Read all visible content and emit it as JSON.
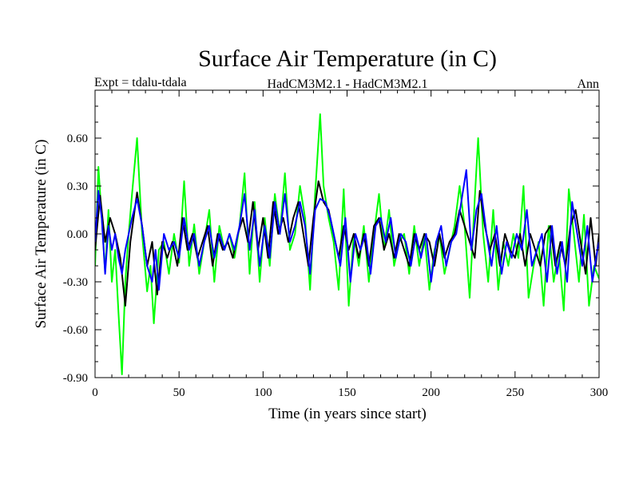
{
  "chart_data": {
    "type": "line",
    "title": "Surface Air Temperature (in C)",
    "subtitle_left": "Expt = tdalu-tdala",
    "subtitle_center": "HadCM3M2.1 - HadCM3M2.1",
    "subtitle_right": "Ann",
    "xlabel": "Time (in years since start)",
    "ylabel": "Surface Air Temperature (in C)",
    "xlim": [
      0,
      300
    ],
    "ylim": [
      -0.9,
      0.9
    ],
    "xticks": [
      0,
      50,
      100,
      150,
      200,
      250,
      300
    ],
    "xtick_labels": [
      "0",
      "50",
      "100",
      "150",
      "200",
      "250",
      "300"
    ],
    "yticks": [
      -0.9,
      -0.6,
      -0.3,
      0.0,
      0.3,
      0.6
    ],
    "ytick_labels": [
      "-0.90",
      "-0.60",
      "-0.30",
      "0.00",
      "0.30",
      "0.60"
    ],
    "series": [
      {
        "name": "green",
        "color": "#00ff00",
        "x": [
          0,
          2,
          4,
          6,
          8,
          10,
          12,
          14,
          16,
          18,
          20,
          22,
          25,
          28,
          31,
          33,
          35,
          38,
          41,
          44,
          47,
          50,
          53,
          56,
          59,
          62,
          65,
          68,
          71,
          74,
          77,
          80,
          83,
          86,
          89,
          92,
          95,
          98,
          101,
          104,
          107,
          110,
          113,
          116,
          119,
          122,
          125,
          128,
          131,
          134,
          136,
          139,
          142,
          145,
          148,
          151,
          154,
          157,
          160,
          163,
          166,
          169,
          172,
          175,
          178,
          181,
          184,
          187,
          190,
          193,
          196,
          199,
          202,
          205,
          208,
          211,
          214,
          217,
          220,
          223,
          226,
          228,
          231,
          234,
          237,
          240,
          243,
          246,
          249,
          252,
          255,
          258,
          261,
          264,
          267,
          270,
          273,
          276,
          279,
          282,
          285,
          288,
          291,
          294,
          297,
          300
        ],
        "values": [
          -0.2,
          0.42,
          0.1,
          -0.24,
          0.15,
          -0.3,
          -0.1,
          -0.5,
          -0.88,
          -0.3,
          0.0,
          0.25,
          0.6,
          0.0,
          -0.36,
          -0.2,
          -0.56,
          -0.1,
          -0.05,
          -0.25,
          0.0,
          -0.18,
          0.33,
          -0.2,
          0.06,
          -0.25,
          -0.05,
          0.15,
          -0.3,
          0.05,
          -0.1,
          0.0,
          -0.15,
          0.05,
          0.38,
          -0.25,
          0.2,
          -0.3,
          0.1,
          -0.2,
          0.25,
          0.0,
          0.38,
          -0.1,
          0.0,
          0.3,
          0.1,
          -0.35,
          0.25,
          0.75,
          0.3,
          0.1,
          -0.05,
          -0.35,
          0.28,
          -0.45,
          0.0,
          -0.2,
          0.05,
          -0.3,
          0.0,
          0.25,
          -0.1,
          0.15,
          -0.2,
          -0.05,
          0.0,
          -0.25,
          0.05,
          -0.2,
          0.0,
          -0.35,
          -0.1,
          0.0,
          -0.25,
          -0.1,
          0.05,
          0.3,
          0.05,
          -0.4,
          0.22,
          0.6,
          0.0,
          -0.3,
          0.15,
          -0.35,
          -0.05,
          -0.2,
          0.0,
          -0.15,
          0.3,
          -0.4,
          -0.2,
          -0.05,
          -0.45,
          0.05,
          -0.3,
          -0.1,
          -0.48,
          0.28,
          0.0,
          -0.3,
          0.12,
          -0.45,
          -0.2,
          -0.28
        ]
      },
      {
        "name": "black",
        "color": "#000000",
        "x": [
          0,
          3,
          6,
          9,
          12,
          15,
          18,
          21,
          25,
          28,
          31,
          34,
          37,
          40,
          43,
          46,
          49,
          52,
          55,
          58,
          61,
          64,
          67,
          70,
          73,
          76,
          79,
          82,
          85,
          88,
          91,
          94,
          97,
          100,
          103,
          106,
          109,
          112,
          115,
          118,
          121,
          124,
          127,
          130,
          133,
          136,
          139,
          142,
          145,
          148,
          151,
          154,
          157,
          160,
          163,
          166,
          169,
          172,
          175,
          178,
          181,
          184,
          187,
          190,
          193,
          196,
          199,
          202,
          205,
          208,
          211,
          214,
          217,
          220,
          223,
          226,
          229,
          232,
          235,
          238,
          241,
          244,
          247,
          250,
          253,
          256,
          259,
          262,
          265,
          268,
          271,
          274,
          277,
          280,
          283,
          286,
          289,
          292,
          295,
          298,
          300
        ],
        "values": [
          -0.1,
          0.24,
          -0.05,
          0.1,
          0.0,
          -0.15,
          -0.45,
          -0.05,
          0.26,
          0.05,
          -0.2,
          -0.05,
          -0.38,
          -0.05,
          -0.15,
          -0.05,
          -0.2,
          0.1,
          -0.1,
          0.0,
          -0.15,
          -0.05,
          0.05,
          -0.2,
          0.0,
          -0.1,
          -0.05,
          -0.15,
          0.0,
          0.1,
          -0.05,
          0.2,
          -0.1,
          0.1,
          -0.15,
          0.2,
          0.0,
          0.1,
          -0.05,
          0.1,
          0.2,
          0.0,
          -0.2,
          0.1,
          0.33,
          0.2,
          0.15,
          0.0,
          -0.15,
          0.05,
          -0.1,
          0.0,
          -0.15,
          0.0,
          -0.2,
          0.05,
          0.1,
          -0.1,
          0.0,
          -0.15,
          0.0,
          -0.1,
          -0.2,
          0.0,
          -0.1,
          0.0,
          -0.05,
          -0.2,
          0.0,
          -0.15,
          -0.05,
          0.0,
          0.15,
          0.05,
          -0.05,
          -0.15,
          0.27,
          0.05,
          -0.1,
          0.0,
          -0.2,
          0.0,
          -0.1,
          -0.15,
          0.0,
          -0.2,
          0.0,
          -0.1,
          -0.2,
          0.0,
          0.05,
          -0.2,
          -0.05,
          -0.2,
          0.05,
          0.15,
          -0.05,
          -0.25,
          0.1,
          -0.2,
          0.0
        ]
      },
      {
        "name": "blue",
        "color": "#0000ff",
        "x": [
          0,
          2,
          4,
          6,
          8,
          10,
          12,
          14,
          16,
          18,
          20,
          22,
          25,
          28,
          31,
          34,
          36,
          38,
          41,
          44,
          47,
          50,
          53,
          56,
          59,
          62,
          65,
          68,
          71,
          74,
          77,
          80,
          83,
          86,
          89,
          92,
          95,
          98,
          101,
          104,
          107,
          110,
          113,
          116,
          119,
          122,
          125,
          128,
          131,
          134,
          137,
          140,
          143,
          146,
          149,
          152,
          155,
          158,
          161,
          164,
          167,
          170,
          173,
          176,
          179,
          182,
          185,
          188,
          191,
          194,
          197,
          200,
          203,
          206,
          209,
          212,
          215,
          218,
          221,
          224,
          227,
          230,
          233,
          236,
          239,
          242,
          245,
          248,
          251,
          254,
          257,
          260,
          263,
          266,
          269,
          272,
          275,
          278,
          281,
          284,
          287,
          290,
          293,
          296,
          299,
          300
        ],
        "values": [
          -0.05,
          0.27,
          0.1,
          -0.25,
          0.05,
          -0.1,
          0.0,
          -0.15,
          -0.25,
          -0.1,
          0.0,
          0.1,
          0.22,
          0.05,
          -0.2,
          -0.3,
          -0.1,
          -0.35,
          0.0,
          -0.1,
          -0.05,
          -0.15,
          0.1,
          -0.1,
          0.0,
          -0.2,
          -0.05,
          0.05,
          -0.15,
          0.0,
          -0.1,
          0.0,
          -0.1,
          0.05,
          0.25,
          -0.1,
          0.15,
          -0.2,
          0.05,
          -0.15,
          0.2,
          0.0,
          0.25,
          -0.05,
          0.05,
          0.2,
          0.05,
          -0.25,
          0.15,
          0.22,
          0.2,
          0.1,
          -0.05,
          -0.2,
          0.1,
          -0.3,
          0.0,
          -0.1,
          0.0,
          -0.25,
          0.05,
          0.1,
          -0.05,
          0.1,
          -0.15,
          0.0,
          -0.05,
          -0.2,
          0.0,
          -0.15,
          0.0,
          -0.3,
          -0.05,
          0.05,
          -0.2,
          -0.05,
          0.0,
          0.2,
          0.4,
          -0.1,
          0.15,
          0.25,
          0.0,
          -0.2,
          0.05,
          -0.25,
          -0.05,
          -0.15,
          0.0,
          -0.1,
          0.15,
          -0.2,
          -0.1,
          0.0,
          -0.3,
          0.05,
          -0.25,
          -0.05,
          -0.3,
          0.2,
          0.0,
          -0.2,
          0.05,
          -0.3,
          -0.1,
          -0.05
        ]
      }
    ]
  }
}
